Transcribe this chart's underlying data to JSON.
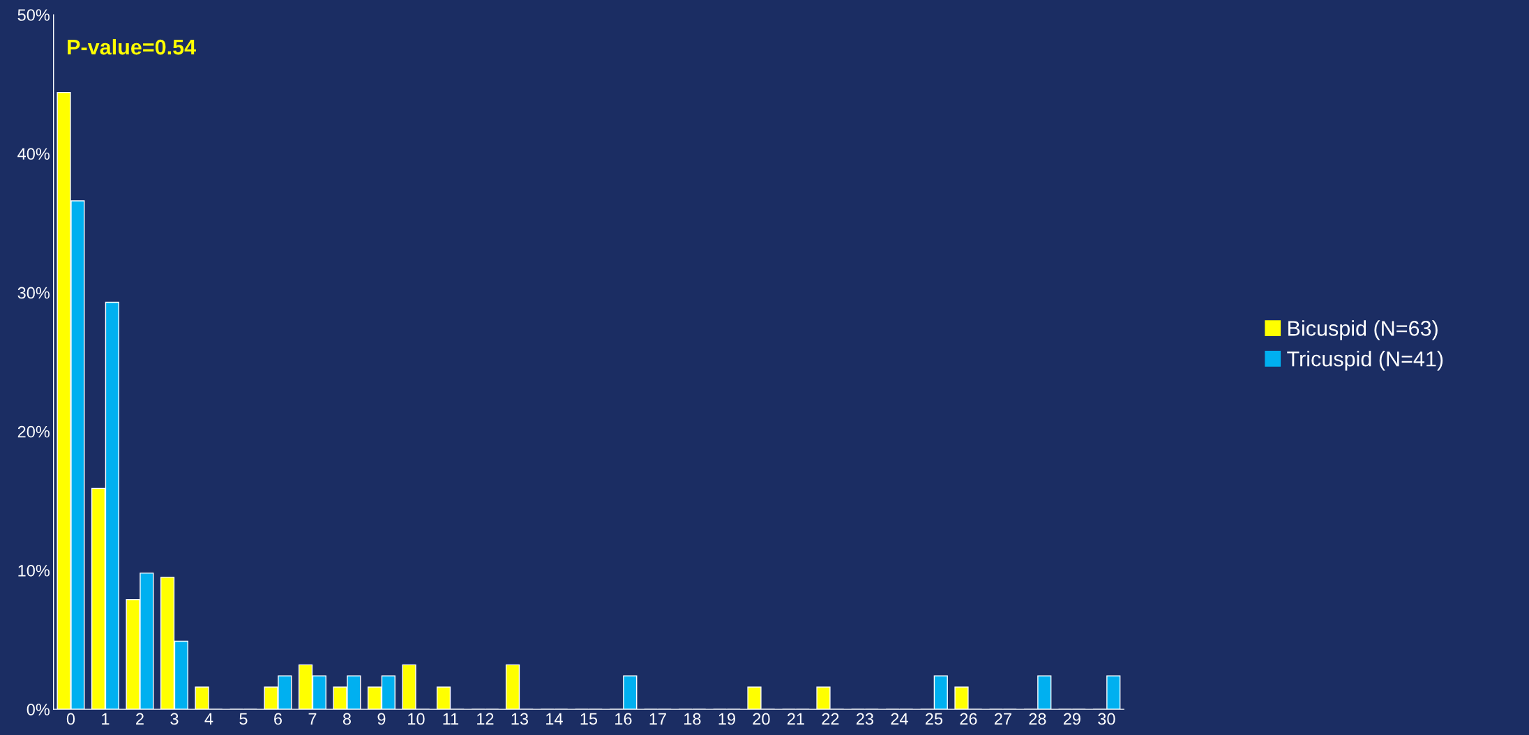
{
  "chart_data": {
    "type": "bar",
    "categories": [
      "0",
      "1",
      "2",
      "3",
      "4",
      "5",
      "6",
      "7",
      "8",
      "9",
      "10",
      "11",
      "12",
      "13",
      "14",
      "15",
      "16",
      "17",
      "18",
      "19",
      "20",
      "21",
      "22",
      "23",
      "24",
      "25",
      "26",
      "27",
      "28",
      "29",
      "30"
    ],
    "series": [
      {
        "name": "Bicuspid (N=63)",
        "color": "#ffff00",
        "values": [
          44.4,
          15.9,
          7.9,
          9.5,
          1.6,
          0,
          1.6,
          3.2,
          1.6,
          1.6,
          3.2,
          1.6,
          0,
          3.2,
          0,
          0,
          0,
          0,
          0,
          0,
          1.6,
          0,
          1.6,
          0,
          0,
          0,
          1.6,
          0,
          0,
          0,
          0
        ]
      },
      {
        "name": "Tricuspid (N=41)",
        "color": "#00b0f0",
        "values": [
          36.6,
          29.3,
          9.8,
          4.9,
          0,
          0,
          2.4,
          2.4,
          2.4,
          2.4,
          0,
          0,
          0,
          0,
          0,
          0,
          2.4,
          0,
          0,
          0,
          0,
          0,
          0,
          0,
          0,
          2.4,
          0,
          0,
          2.4,
          0,
          2.4
        ]
      }
    ],
    "ylim": [
      0,
      50
    ],
    "yticks": [
      {
        "value": 0,
        "label": "0%"
      },
      {
        "value": 10,
        "label": "10%"
      },
      {
        "value": 20,
        "label": "20%"
      },
      {
        "value": 30,
        "label": "30%"
      },
      {
        "value": 40,
        "label": "40%"
      },
      {
        "value": 50,
        "label": "50%"
      }
    ],
    "annotations": [
      "P-value=0.54"
    ],
    "grid": false,
    "legend": "right"
  }
}
